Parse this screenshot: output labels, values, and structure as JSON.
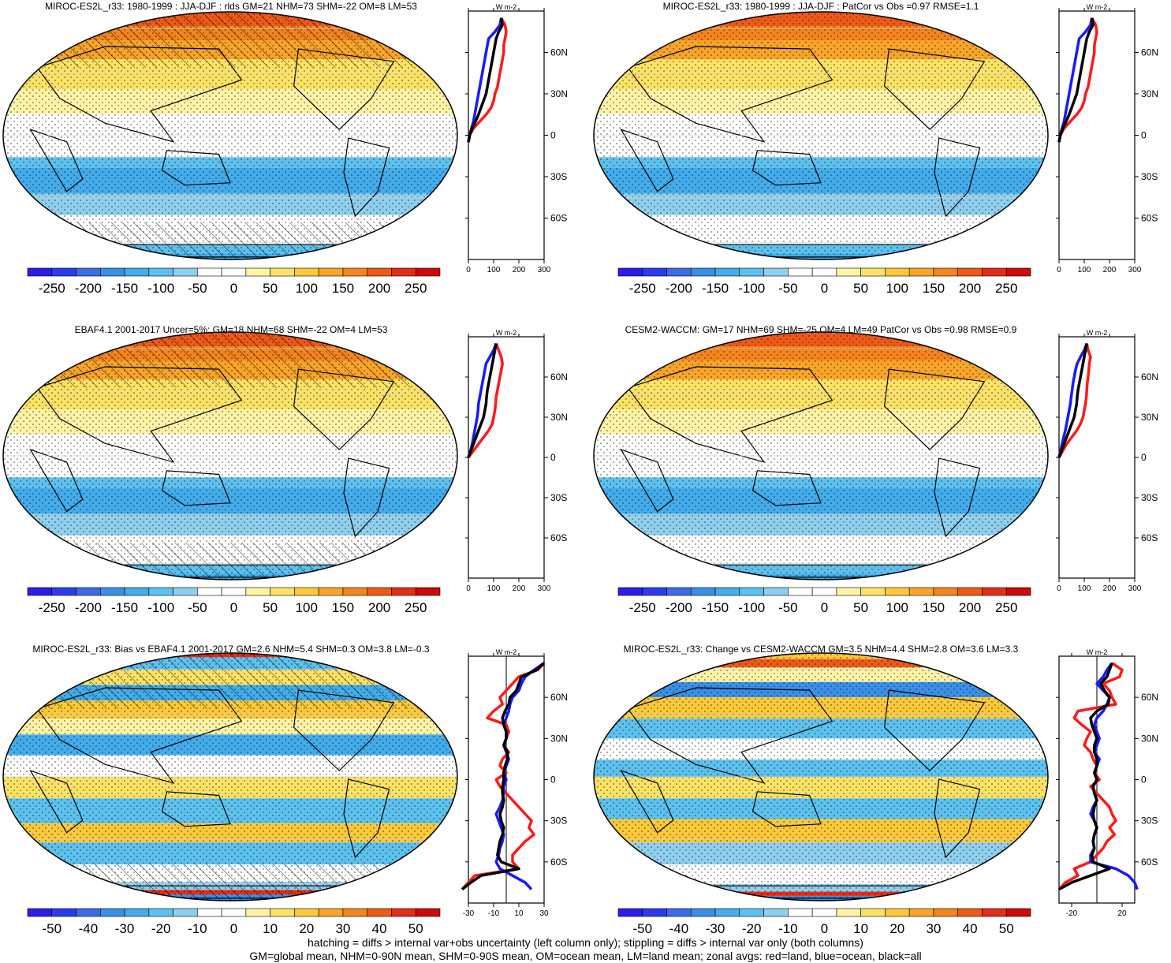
{
  "footer": {
    "line1": "hatching = diffs > internal var+obs uncertainty (left column only); stippling = diffs > internal var only (both columns)",
    "line2": "GM=global mean, NHM=0-90N mean, SHM=0-90S mean, OM=ocean mean, LM=land mean; zonal avgs: red=land, blue=ocean, black=all"
  },
  "colors": {
    "land": "#ff1a1a",
    "ocean": "#1a1aff",
    "all": "#000000",
    "palette": [
      "#2b1ee8",
      "#2a3bef",
      "#3b6be8",
      "#3a8fe6",
      "#43acea",
      "#5dc1ee",
      "#8fcfee",
      "#ffffff",
      "#ffffff",
      "#fff3a6",
      "#fde266",
      "#fbc93a",
      "#f9a52a",
      "#f5841d",
      "#ee5a16",
      "#e52c15",
      "#cc0a0a"
    ]
  },
  "chart_data": [
    {
      "type": "heatmap",
      "title": "MIROC-ES2L_r33: 1980-1999 : JJA-DJF : rlds GM=21 NHM=73 SHM=-22 OM=8 LM=53",
      "colorbar_ticks": [
        "-250",
        "-200",
        "-150",
        "-100",
        "-50",
        "0",
        "50",
        "100",
        "150",
        "200",
        "250"
      ],
      "lat_ticks": [
        "60N",
        "30N",
        "0",
        "30S",
        "60S"
      ],
      "lat_values": [
        60,
        30,
        0,
        -30,
        -60
      ],
      "unit": "W m-2",
      "zonal_xlim": [
        0,
        300
      ],
      "zonal_ticks": [
        0,
        100,
        200,
        300
      ],
      "map_field": "annual_cycle",
      "hatching": "partial",
      "zonal": {
        "lat": [
          85,
          80,
          75,
          70,
          65,
          60,
          55,
          50,
          45,
          40,
          35,
          30,
          25,
          20,
          15,
          10,
          5,
          0,
          -5
        ],
        "land": [
          130,
          145,
          150,
          145,
          140,
          140,
          135,
          130,
          125,
          120,
          115,
          105,
          100,
          90,
          70,
          45,
          20,
          5,
          0
        ],
        "ocean": [
          130,
          125,
          105,
          80,
          75,
          70,
          65,
          60,
          55,
          50,
          45,
          40,
          35,
          30,
          25,
          20,
          12,
          5,
          0
        ],
        "all": [
          130,
          135,
          120,
          110,
          105,
          100,
          95,
          90,
          85,
          80,
          75,
          70,
          60,
          50,
          40,
          28,
          15,
          5,
          0
        ]
      }
    },
    {
      "type": "heatmap",
      "title": "MIROC-ES2L_r33: 1980-1999 : JJA-DJF : PatCor vs Obs =0.97 RMSE=1.1",
      "colorbar_ticks": [
        "-250",
        "-200",
        "-150",
        "-100",
        "-50",
        "0",
        "50",
        "100",
        "150",
        "200",
        "250"
      ],
      "lat_ticks": [
        "60N",
        "30N",
        "0",
        "30S",
        "60S"
      ],
      "lat_values": [
        60,
        30,
        0,
        -30,
        -60
      ],
      "unit": "W m-2",
      "zonal_xlim": [
        0,
        300
      ],
      "zonal_ticks": [
        0,
        100,
        200,
        300
      ],
      "map_field": "annual_cycle",
      "hatching": "none",
      "zonal": {
        "lat": [
          85,
          80,
          75,
          70,
          65,
          60,
          55,
          50,
          45,
          40,
          35,
          30,
          25,
          20,
          15,
          10,
          5,
          0,
          -5
        ],
        "land": [
          130,
          145,
          150,
          145,
          140,
          140,
          135,
          130,
          125,
          120,
          115,
          105,
          100,
          90,
          70,
          45,
          20,
          5,
          0
        ],
        "ocean": [
          130,
          125,
          105,
          80,
          75,
          70,
          65,
          60,
          55,
          50,
          45,
          40,
          35,
          30,
          25,
          20,
          12,
          5,
          0
        ],
        "all": [
          130,
          135,
          120,
          110,
          105,
          100,
          95,
          90,
          85,
          80,
          75,
          70,
          60,
          50,
          40,
          28,
          15,
          5,
          0
        ]
      }
    },
    {
      "type": "heatmap",
      "title": "EBAF4.1 2001-2017 Uncer=5%: GM=18 NHM=68 SHM=-22 OM=4 LM=53",
      "colorbar_ticks": [
        "-250",
        "-200",
        "-150",
        "-100",
        "-50",
        "0",
        "50",
        "100",
        "150",
        "200",
        "250"
      ],
      "lat_ticks": [
        "60N",
        "30N",
        "0",
        "30S",
        "60S"
      ],
      "lat_values": [
        60,
        30,
        0,
        -30,
        -60
      ],
      "unit": "W m-2",
      "zonal_xlim": [
        0,
        300
      ],
      "zonal_ticks": [
        0,
        100,
        200,
        300
      ],
      "map_field": "annual_cycle",
      "hatching": "partial",
      "zonal": {
        "lat": [
          85,
          80,
          75,
          70,
          65,
          60,
          55,
          50,
          45,
          40,
          35,
          30,
          25,
          20,
          15,
          10,
          5,
          0
        ],
        "land": [
          110,
          120,
          130,
          135,
          130,
          125,
          120,
          115,
          110,
          108,
          105,
          100,
          95,
          80,
          60,
          40,
          20,
          0
        ],
        "ocean": [
          110,
          100,
          85,
          70,
          65,
          60,
          55,
          50,
          45,
          40,
          38,
          35,
          30,
          25,
          20,
          15,
          8,
          0
        ],
        "all": [
          110,
          105,
          100,
          95,
          90,
          85,
          80,
          75,
          72,
          70,
          65,
          60,
          50,
          40,
          30,
          20,
          10,
          0
        ]
      }
    },
    {
      "type": "heatmap",
      "title": "CESM2-WACCM: GM=17 NHM=69 SHM=-25 OM=4 LM=49 PatCor vs Obs =0.98 RMSE=0.9",
      "colorbar_ticks": [
        "-250",
        "-200",
        "-150",
        "-100",
        "-50",
        "0",
        "50",
        "100",
        "150",
        "200",
        "250"
      ],
      "lat_ticks": [
        "60N",
        "30N",
        "0",
        "30S",
        "60S"
      ],
      "lat_values": [
        60,
        30,
        0,
        -30,
        -60
      ],
      "unit": "W m-2",
      "zonal_xlim": [
        0,
        300
      ],
      "zonal_ticks": [
        0,
        100,
        200,
        300
      ],
      "map_field": "annual_cycle",
      "hatching": "none",
      "zonal": {
        "lat": [
          85,
          80,
          75,
          70,
          65,
          60,
          55,
          50,
          45,
          40,
          35,
          30,
          25,
          20,
          15,
          10,
          5,
          0
        ],
        "land": [
          110,
          115,
          125,
          120,
          118,
          115,
          112,
          110,
          108,
          105,
          100,
          95,
          85,
          70,
          50,
          30,
          15,
          0
        ],
        "ocean": [
          110,
          100,
          85,
          72,
          65,
          60,
          55,
          52,
          48,
          45,
          40,
          35,
          30,
          25,
          18,
          12,
          6,
          0
        ],
        "all": [
          110,
          105,
          100,
          95,
          90,
          85,
          80,
          75,
          72,
          70,
          65,
          60,
          50,
          40,
          30,
          20,
          10,
          0
        ]
      }
    },
    {
      "type": "heatmap",
      "title": "MIROC-ES2L_r33: Bias vs EBAF4.1 2001-2017 GM=2.6 NHM=5.4 SHM=0.3 OM=3.8 LM=-0.3",
      "colorbar_ticks": [
        "-50",
        "-40",
        "-30",
        "-20",
        "-10",
        "0",
        "10",
        "20",
        "30",
        "40",
        "50"
      ],
      "lat_ticks": [
        "60N",
        "30N",
        "0",
        "30S",
        "60S"
      ],
      "lat_values": [
        60,
        30,
        0,
        -30,
        -60
      ],
      "unit": "W m-2",
      "zonal_xlim": [
        -30,
        30
      ],
      "zonal_ticks": [
        -30,
        -10,
        10,
        30
      ],
      "map_field": "bias",
      "hatching": "partial",
      "zonal": {
        "lat": [
          85,
          80,
          75,
          70,
          65,
          60,
          55,
          50,
          45,
          40,
          35,
          30,
          25,
          20,
          15,
          10,
          5,
          0,
          -5,
          -10,
          -15,
          -20,
          -25,
          -30,
          -35,
          -40,
          -45,
          -50,
          -55,
          -60,
          -65,
          -70,
          -75,
          -80
        ],
        "land": [
          30,
          25,
          10,
          5,
          0,
          -5,
          -3,
          -10,
          -15,
          0,
          2,
          0,
          -2,
          2,
          -3,
          -5,
          0,
          -8,
          -5,
          0,
          5,
          10,
          15,
          20,
          18,
          22,
          15,
          10,
          5,
          5,
          10,
          -25,
          -30,
          -35
        ],
        "ocean": [
          30,
          22,
          15,
          12,
          10,
          5,
          3,
          2,
          0,
          -2,
          0,
          0,
          -2,
          0,
          2,
          0,
          -2,
          0,
          -2,
          -2,
          -3,
          -5,
          -8,
          -6,
          -4,
          -2,
          -3,
          -5,
          -6,
          -8,
          -5,
          5,
          15,
          20
        ],
        "all": [
          30,
          24,
          12,
          10,
          8,
          3,
          2,
          -1,
          -3,
          -2,
          0,
          0,
          -2,
          1,
          1,
          -1,
          -2,
          -2,
          -3,
          -3,
          -2,
          -3,
          -5,
          -4,
          -2,
          -3,
          -5,
          -6,
          -7,
          -4,
          10,
          -20,
          -28,
          -35
        ]
      }
    },
    {
      "type": "heatmap",
      "title": "MIROC-ES2L_r33: Change vs CESM2-WACCM GM=3.5 NHM=4.4 SHM=2.8 OM=3.6 LM=3.3",
      "colorbar_ticks": [
        "-50",
        "-40",
        "-30",
        "-20",
        "-10",
        "0",
        "10",
        "20",
        "30",
        "40",
        "50"
      ],
      "lat_ticks": [
        "60N",
        "30N",
        "0",
        "30S",
        "60S"
      ],
      "lat_values": [
        60,
        30,
        0,
        -30,
        -60
      ],
      "unit": "W m-2",
      "zonal_xlim": [
        -30,
        30
      ],
      "zonal_ticks": [
        -20,
        20
      ],
      "map_field": "change",
      "hatching": "none",
      "zonal": {
        "lat": [
          85,
          80,
          75,
          70,
          65,
          60,
          55,
          50,
          45,
          40,
          35,
          30,
          25,
          20,
          15,
          10,
          5,
          0,
          -5,
          -10,
          -15,
          -20,
          -25,
          -30,
          -35,
          -40,
          -45,
          -50,
          -55,
          -60,
          -65,
          -70,
          -75,
          -80
        ],
        "land": [
          12,
          20,
          18,
          5,
          10,
          12,
          15,
          -15,
          -18,
          -12,
          -5,
          -8,
          -10,
          -5,
          -3,
          0,
          -2,
          2,
          -5,
          0,
          5,
          10,
          12,
          15,
          10,
          14,
          8,
          5,
          0,
          -5,
          -18,
          -15,
          -25,
          -30
        ],
        "ocean": [
          12,
          8,
          5,
          0,
          5,
          10,
          8,
          5,
          0,
          -2,
          0,
          2,
          0,
          -2,
          2,
          0,
          -2,
          0,
          -3,
          -2,
          0,
          -3,
          -5,
          -2,
          0,
          -2,
          -3,
          -2,
          -5,
          -5,
          15,
          25,
          30,
          32
        ],
        "all": [
          12,
          10,
          8,
          3,
          6,
          10,
          9,
          0,
          -5,
          -4,
          -2,
          0,
          -2,
          -2,
          0,
          0,
          -2,
          0,
          -3,
          -2,
          0,
          -2,
          -3,
          -2,
          0,
          -2,
          -3,
          -2,
          -4,
          -3,
          10,
          -5,
          -20,
          -30
        ]
      }
    }
  ]
}
